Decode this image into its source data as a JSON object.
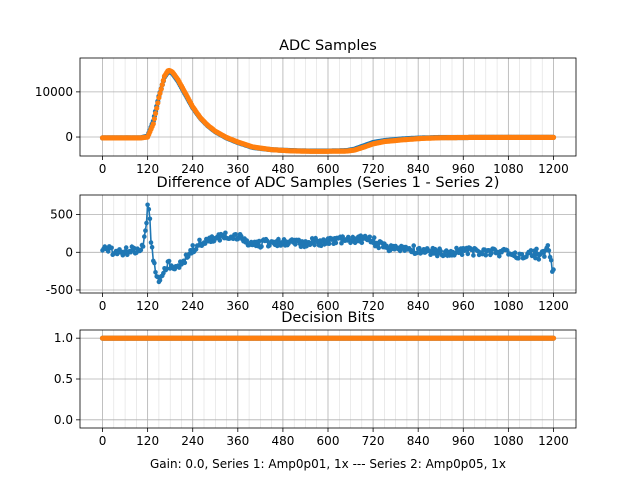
{
  "figure": {
    "footer": "Gain: 0.0, Series 1: Amp0p01, 1x --- Series 2: Amp0p05, 1x",
    "colors": {
      "series1": "#1f77b4",
      "series2": "#ff7f0e",
      "grid": "#b0b0b0"
    }
  },
  "chart_data": [
    {
      "type": "scatter",
      "title": "ADC Samples",
      "xlabel": "",
      "ylabel": "",
      "xlim": [
        -60,
        1260
      ],
      "ylim": [
        -4200,
        17500
      ],
      "xticks": [
        0,
        120,
        240,
        360,
        480,
        600,
        720,
        840,
        960,
        1080,
        1200
      ],
      "yticks": [
        0,
        10000
      ],
      "grid": true,
      "series": [
        {
          "name": "Series 1",
          "color": "#1f77b4",
          "x": [
            0,
            100,
            120,
            135,
            150,
            165,
            175,
            185,
            200,
            220,
            240,
            260,
            280,
            300,
            330,
            360,
            400,
            450,
            500,
            550,
            600,
            650,
            670,
            700,
            720,
            750,
            800,
            850,
            900,
            960,
            1000,
            1050,
            1100,
            1150,
            1200
          ],
          "y": [
            -200,
            -200,
            200,
            3500,
            9000,
            13300,
            14500,
            14200,
            12500,
            9500,
            6500,
            4200,
            2500,
            1200,
            -200,
            -1200,
            -2300,
            -2800,
            -3000,
            -3100,
            -3100,
            -3000,
            -2700,
            -1800,
            -1200,
            -800,
            -400,
            -200,
            -100,
            -100,
            -80,
            -80,
            -80,
            -80,
            -80
          ]
        },
        {
          "name": "Series 2",
          "color": "#ff7f0e",
          "x": [
            0,
            100,
            120,
            135,
            150,
            165,
            175,
            185,
            200,
            220,
            240,
            260,
            280,
            300,
            330,
            360,
            400,
            450,
            500,
            550,
            600,
            650,
            670,
            700,
            720,
            750,
            800,
            850,
            900,
            960,
            1000,
            1050,
            1100,
            1150,
            1200
          ],
          "y": [
            -200,
            -200,
            0,
            2900,
            8700,
            13500,
            14800,
            14500,
            12800,
            9800,
            6700,
            4300,
            2600,
            1300,
            -100,
            -1100,
            -2200,
            -2800,
            -3050,
            -3150,
            -3150,
            -3100,
            -2900,
            -2100,
            -1500,
            -1000,
            -600,
            -300,
            -150,
            -100,
            -80,
            -80,
            -80,
            -80,
            -80
          ]
        }
      ]
    },
    {
      "type": "line",
      "title": "Difference of ADC Samples (Series 1 - Series 2)",
      "xlabel": "",
      "ylabel": "",
      "xlim": [
        -60,
        1260
      ],
      "ylim": [
        -540,
        760
      ],
      "xticks": [
        0,
        120,
        240,
        360,
        480,
        600,
        720,
        840,
        960,
        1080,
        1200
      ],
      "yticks": [
        -500,
        0,
        500
      ],
      "grid": true,
      "series": [
        {
          "name": "Difference",
          "color": "#1f77b4",
          "x": [
            0,
            30,
            60,
            90,
            105,
            115,
            120,
            125,
            130,
            140,
            150,
            160,
            175,
            190,
            210,
            225,
            240,
            260,
            280,
            300,
            320,
            340,
            360,
            400,
            450,
            500,
            550,
            600,
            650,
            700,
            720,
            750,
            800,
            850,
            900,
            950,
            1000,
            1050,
            1100,
            1150,
            1190,
            1200
          ],
          "y": [
            60,
            0,
            10,
            30,
            50,
            300,
            650,
            500,
            80,
            -200,
            -380,
            -250,
            -150,
            -250,
            -120,
            -80,
            40,
            120,
            150,
            180,
            200,
            230,
            200,
            100,
            130,
            120,
            130,
            140,
            160,
            180,
            150,
            60,
            60,
            20,
            0,
            20,
            10,
            0,
            -30,
            -20,
            0,
            -250
          ]
        }
      ]
    },
    {
      "type": "scatter",
      "title": "Decision Bits",
      "xlabel": "Gain: 0.0, Series 1: Amp0p01, 1x --- Series 2: Amp0p05, 1x",
      "ylabel": "",
      "xlim": [
        -60,
        1260
      ],
      "ylim": [
        -0.1,
        1.1
      ],
      "xticks": [
        0,
        120,
        240,
        360,
        480,
        600,
        720,
        840,
        960,
        1080,
        1200
      ],
      "yticks": [
        0.0,
        0.5,
        1.0
      ],
      "grid": true,
      "series": [
        {
          "name": "Series 1",
          "color": "#1f77b4",
          "x": [
            0,
            1200
          ],
          "y": [
            1,
            1
          ]
        },
        {
          "name": "Series 2",
          "color": "#ff7f0e",
          "x": [
            0,
            1200
          ],
          "y": [
            1,
            1
          ]
        }
      ]
    }
  ]
}
